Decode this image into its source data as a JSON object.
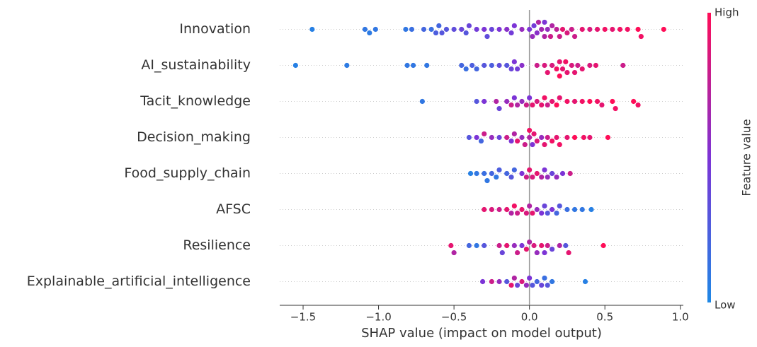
{
  "chart_data": {
    "type": "beeswarm",
    "xlabel": "SHAP value (impact on model output)",
    "xlim": [
      -1.655,
      1.02
    ],
    "xticks": [
      {
        "value": -1.5,
        "label": "−1.5"
      },
      {
        "value": -1.0,
        "label": "−1.0"
      },
      {
        "value": -0.5,
        "label": "−0.5"
      },
      {
        "value": 0,
        "label": "0.0"
      },
      0.5,
      {
        "value": 1.0,
        "label": "1.0"
      }
    ],
    "colorbar": {
      "label": "Feature value",
      "high": "High",
      "low": "Low",
      "colormap": [
        "#1e88e5",
        "#7c34d6",
        "#ff0d57"
      ]
    },
    "series": [
      {
        "name": "Innovation",
        "values": [
          -1.44,
          -1.09,
          -1.06,
          -1.02,
          -0.82,
          -0.78,
          -0.7,
          -0.65,
          -0.62,
          -0.6,
          -0.58,
          -0.55,
          -0.5,
          -0.45,
          -0.42,
          -0.4,
          -0.35,
          -0.3,
          -0.28,
          -0.25,
          -0.2,
          -0.15,
          -0.12,
          -0.1,
          -0.05,
          0.0,
          0.02,
          0.03,
          0.05,
          0.06,
          0.08,
          0.1,
          0.1,
          0.12,
          0.14,
          0.15,
          0.18,
          0.2,
          0.22,
          0.25,
          0.28,
          0.3,
          0.35,
          0.4,
          0.45,
          0.5,
          0.55,
          0.6,
          0.65,
          0.72,
          0.74,
          0.89
        ],
        "feature_values": [
          0.05,
          0.1,
          0.08,
          0.1,
          0.1,
          0.15,
          0.2,
          0.15,
          0.25,
          0.2,
          0.3,
          0.3,
          0.35,
          0.4,
          0.3,
          0.4,
          0.45,
          0.5,
          0.35,
          0.4,
          0.5,
          0.55,
          0.45,
          0.5,
          0.6,
          0.5,
          0.6,
          0.45,
          0.55,
          0.7,
          0.65,
          0.7,
          0.5,
          0.6,
          0.8,
          0.7,
          0.75,
          0.8,
          0.9,
          0.85,
          0.8,
          0.8,
          0.9,
          0.85,
          0.9,
          0.95,
          0.9,
          0.95,
          0.95,
          1,
          0.95,
          1
        ]
      },
      {
        "name": "AI_sustainability",
        "values": [
          -1.55,
          -1.21,
          -0.81,
          -0.77,
          -0.68,
          -0.45,
          -0.42,
          -0.38,
          -0.35,
          -0.3,
          -0.25,
          -0.2,
          -0.15,
          -0.12,
          -0.1,
          -0.08,
          -0.05,
          0.05,
          0.1,
          0.12,
          0.15,
          0.18,
          0.2,
          0.2,
          0.22,
          0.24,
          0.25,
          0.28,
          0.3,
          0.32,
          0.35,
          0.4,
          0.44,
          0.62
        ],
        "feature_values": [
          0.05,
          0.08,
          0.1,
          0.1,
          0.1,
          0.2,
          0.15,
          0.25,
          0.2,
          0.3,
          0.25,
          0.35,
          0.3,
          0.4,
          0.5,
          0.45,
          0.55,
          0.8,
          0.85,
          0.9,
          0.85,
          0.95,
          0.9,
          1,
          0.9,
          0.95,
          0.9,
          0.85,
          0.9,
          0.8,
          0.9,
          0.85,
          0.9,
          0.8
        ]
      },
      {
        "name": "Tacit_knowledge",
        "values": [
          -0.71,
          -0.35,
          -0.3,
          -0.22,
          -0.2,
          -0.15,
          -0.12,
          -0.1,
          -0.08,
          -0.05,
          -0.02,
          0.0,
          0.02,
          0.05,
          0.08,
          0.1,
          0.12,
          0.15,
          0.18,
          0.2,
          0.25,
          0.3,
          0.35,
          0.4,
          0.45,
          0.48,
          0.55,
          0.57,
          0.69,
          0.72
        ],
        "feature_values": [
          0.1,
          0.3,
          0.5,
          0.7,
          0.4,
          0.6,
          0.8,
          0.5,
          0.7,
          0.6,
          0.8,
          0.5,
          0.9,
          0.85,
          0.9,
          0.95,
          0.8,
          0.9,
          1,
          0.9,
          0.95,
          0.9,
          0.95,
          1,
          0.95,
          0.9,
          1,
          0.95,
          1,
          0.95
        ]
      },
      {
        "name": "Decision_making",
        "values": [
          -0.4,
          -0.35,
          -0.32,
          -0.3,
          -0.25,
          -0.2,
          -0.15,
          -0.12,
          -0.1,
          -0.08,
          -0.05,
          -0.03,
          0.0,
          0.0,
          0.02,
          0.03,
          0.05,
          0.08,
          0.1,
          0.12,
          0.15,
          0.18,
          0.2,
          0.25,
          0.3,
          0.36,
          0.4,
          0.52
        ],
        "feature_values": [
          0.3,
          0.5,
          0.2,
          0.8,
          0.6,
          0.4,
          0.8,
          0.5,
          0.7,
          0.9,
          0.6,
          0.8,
          0.7,
          0.95,
          0.5,
          0.9,
          0.85,
          0.6,
          0.9,
          0.8,
          0.95,
          0.9,
          0.95,
          0.9,
          1,
          0.95,
          0.9,
          1
        ]
      },
      {
        "name": "Food_supply_chain",
        "values": [
          -0.39,
          -0.35,
          -0.3,
          -0.28,
          -0.25,
          -0.22,
          -0.2,
          -0.15,
          -0.12,
          -0.1,
          -0.05,
          -0.02,
          0.0,
          0.02,
          0.05,
          0.08,
          0.1,
          0.12,
          0.15,
          0.18,
          0.22,
          0.27
        ],
        "feature_values": [
          0.05,
          0.1,
          0.15,
          0.1,
          0.2,
          0.1,
          0.25,
          0.2,
          0.3,
          0.2,
          0.5,
          0.8,
          0.9,
          0.85,
          0.9,
          0.7,
          0.5,
          0.6,
          0.4,
          0.6,
          0.5,
          0.8
        ]
      },
      {
        "name": "AFSC",
        "values": [
          -0.3,
          -0.25,
          -0.2,
          -0.15,
          -0.12,
          -0.1,
          -0.08,
          -0.05,
          -0.02,
          0.0,
          0.02,
          0.05,
          0.08,
          0.1,
          0.12,
          0.15,
          0.18,
          0.2,
          0.25,
          0.3,
          0.35,
          0.41
        ],
        "feature_values": [
          0.9,
          0.85,
          0.8,
          0.9,
          0.7,
          0.95,
          0.8,
          0.9,
          0.85,
          0.7,
          0.9,
          0.6,
          0.5,
          0.4,
          0.3,
          0.5,
          0.2,
          0.3,
          0.15,
          0.1,
          0.1,
          0.05
        ]
      },
      {
        "name": "Resilience",
        "values": [
          -0.52,
          -0.5,
          -0.4,
          -0.35,
          -0.3,
          -0.2,
          -0.18,
          -0.15,
          -0.1,
          -0.08,
          -0.05,
          -0.02,
          0.0,
          0.03,
          0.05,
          0.08,
          0.1,
          0.12,
          0.15,
          0.2,
          0.24,
          0.26,
          0.49
        ],
        "feature_values": [
          0.9,
          0.7,
          0.2,
          0.1,
          0.3,
          0.8,
          0.4,
          0.9,
          0.6,
          0.8,
          0.5,
          0.9,
          0.7,
          0.85,
          0.6,
          0.9,
          0.5,
          0.8,
          0.4,
          0.7,
          0.3,
          0.9,
          1
        ]
      },
      {
        "name": "Explainable_artificial_intelligence",
        "values": [
          -0.31,
          -0.25,
          -0.2,
          -0.15,
          -0.12,
          -0.1,
          -0.08,
          -0.05,
          -0.02,
          0.0,
          0.02,
          0.05,
          0.08,
          0.1,
          0.12,
          0.15,
          0.37
        ],
        "feature_values": [
          0.5,
          0.8,
          0.6,
          0.3,
          0.9,
          0.7,
          0.4,
          0.85,
          0.6,
          0.5,
          0.3,
          0.2,
          0.4,
          0.15,
          0.3,
          0.1,
          0.05
        ]
      }
    ]
  }
}
